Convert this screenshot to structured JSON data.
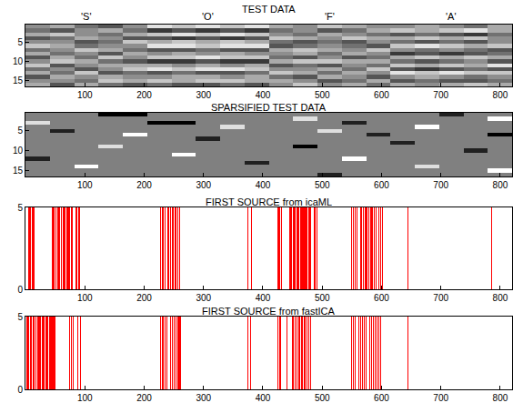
{
  "chart_data": [
    {
      "type": "heatmap",
      "title": "TEST DATA",
      "color": "gray",
      "grid": false,
      "annotations": [
        {
          "text": "'S'",
          "x": 103
        },
        {
          "text": "'O'",
          "x": 308
        },
        {
          "text": "'F'",
          "x": 513
        },
        {
          "text": "'A'",
          "x": 718
        }
      ],
      "x": [
        20.5,
        61.5,
        102.5,
        143.5,
        184.5,
        225.5,
        266.5,
        307.5,
        348.5,
        389.5,
        430.5,
        471.5,
        512.5,
        553.5,
        594.5,
        635.5,
        676.5,
        717.5,
        758.5,
        799.5
      ],
      "y": [
        1,
        2,
        3,
        4,
        5,
        6,
        7,
        8,
        9,
        10,
        11,
        12,
        13,
        14,
        15,
        16
      ],
      "zlim": [
        0,
        9
      ],
      "z": [
        [
          5,
          6,
          4,
          3,
          5,
          8,
          7,
          8,
          7,
          8,
          6,
          5,
          7,
          6,
          5,
          5,
          6,
          5,
          4,
          6
        ],
        [
          4,
          3,
          5,
          6,
          4,
          2,
          3,
          2,
          3,
          2,
          4,
          5,
          3,
          4,
          6,
          7,
          6,
          7,
          8,
          6
        ],
        [
          6,
          7,
          5,
          4,
          6,
          7,
          8,
          7,
          8,
          7,
          5,
          4,
          6,
          5,
          4,
          3,
          4,
          3,
          2,
          4
        ],
        [
          3,
          4,
          6,
          5,
          3,
          3,
          2,
          3,
          2,
          3,
          7,
          6,
          5,
          7,
          6,
          6,
          7,
          6,
          7,
          5
        ],
        [
          5,
          5,
          3,
          4,
          7,
          6,
          7,
          6,
          7,
          6,
          4,
          3,
          4,
          3,
          5,
          4,
          3,
          4,
          3,
          5
        ],
        [
          7,
          6,
          4,
          5,
          5,
          8,
          8,
          7,
          8,
          8,
          3,
          4,
          5,
          4,
          3,
          7,
          8,
          7,
          6,
          7
        ],
        [
          4,
          5,
          7,
          6,
          4,
          3,
          3,
          4,
          3,
          3,
          6,
          7,
          6,
          5,
          7,
          5,
          4,
          5,
          4,
          3
        ],
        [
          6,
          4,
          5,
          3,
          6,
          5,
          6,
          5,
          6,
          5,
          5,
          6,
          4,
          6,
          5,
          2,
          3,
          2,
          3,
          4
        ],
        [
          3,
          6,
          4,
          7,
          5,
          7,
          7,
          8,
          7,
          7,
          4,
          3,
          5,
          3,
          4,
          6,
          7,
          6,
          7,
          6
        ],
        [
          5,
          7,
          6,
          4,
          3,
          2,
          2,
          3,
          2,
          2,
          6,
          7,
          7,
          6,
          6,
          4,
          3,
          4,
          5,
          3
        ],
        [
          7,
          3,
          5,
          6,
          6,
          6,
          5,
          6,
          5,
          6,
          3,
          4,
          3,
          5,
          4,
          7,
          6,
          7,
          6,
          8
        ],
        [
          4,
          5,
          3,
          5,
          7,
          8,
          7,
          8,
          8,
          7,
          5,
          5,
          6,
          4,
          7,
          3,
          2,
          3,
          4,
          3
        ],
        [
          6,
          4,
          7,
          3,
          4,
          3,
          4,
          3,
          3,
          4,
          7,
          6,
          4,
          6,
          5,
          8,
          7,
          8,
          7,
          7
        ],
        [
          3,
          6,
          5,
          6,
          5,
          5,
          6,
          6,
          5,
          6,
          4,
          3,
          6,
          5,
          3,
          5,
          6,
          5,
          4,
          5
        ],
        [
          5,
          5,
          4,
          7,
          6,
          7,
          6,
          7,
          7,
          6,
          6,
          5,
          3,
          4,
          6,
          3,
          4,
          3,
          3,
          4
        ],
        [
          6,
          3,
          6,
          4,
          3,
          4,
          3,
          3,
          4,
          3,
          5,
          7,
          5,
          6,
          4,
          6,
          5,
          6,
          7,
          6
        ]
      ],
      "xlim": [
        0,
        820
      ],
      "xticks": [
        100,
        200,
        300,
        400,
        500,
        600,
        700,
        800
      ],
      "ylim": [
        16.5,
        0.5
      ],
      "yticks": [
        5,
        10,
        15
      ]
    },
    {
      "type": "heatmap",
      "title": "SPARSIFIED TEST DATA",
      "color": "gray",
      "grid": false,
      "x": [
        20.5,
        61.5,
        102.5,
        143.5,
        184.5,
        225.5,
        266.5,
        307.5,
        348.5,
        389.5,
        430.5,
        471.5,
        512.5,
        553.5,
        594.5,
        635.5,
        676.5,
        717.5,
        758.5,
        799.5
      ],
      "y": [
        1,
        2,
        3,
        4,
        5,
        6,
        7,
        8,
        9,
        10,
        11,
        12,
        13,
        14,
        15,
        16
      ],
      "zlim": [
        -4,
        4
      ],
      "z": [
        [
          0,
          0,
          0,
          -4,
          -4,
          0,
          0,
          0,
          0,
          0,
          0,
          0,
          0,
          0,
          0,
          0,
          0,
          -3,
          0,
          0
        ],
        [
          0,
          0,
          0,
          0,
          0,
          0,
          0,
          0,
          0,
          0,
          0,
          3,
          0,
          0,
          0,
          0,
          0,
          0,
          0,
          4
        ],
        [
          3,
          0,
          0,
          0,
          0,
          -4,
          -4,
          0,
          0,
          0,
          0,
          0,
          0,
          -3,
          0,
          0,
          0,
          0,
          0,
          0
        ],
        [
          0,
          0,
          0,
          0,
          0,
          0,
          0,
          0,
          3,
          0,
          0,
          0,
          0,
          0,
          0,
          0,
          4,
          0,
          0,
          0
        ],
        [
          0,
          -3,
          0,
          0,
          0,
          0,
          0,
          0,
          0,
          0,
          0,
          0,
          3,
          0,
          0,
          0,
          0,
          0,
          0,
          0
        ],
        [
          0,
          0,
          0,
          0,
          4,
          0,
          0,
          0,
          0,
          0,
          0,
          0,
          0,
          0,
          -3,
          0,
          0,
          0,
          0,
          -4
        ],
        [
          0,
          0,
          0,
          0,
          0,
          0,
          0,
          -3,
          0,
          0,
          0,
          0,
          0,
          0,
          0,
          0,
          0,
          0,
          0,
          0
        ],
        [
          0,
          0,
          0,
          0,
          0,
          0,
          0,
          0,
          0,
          0,
          0,
          0,
          0,
          0,
          0,
          -3,
          0,
          0,
          0,
          0
        ],
        [
          0,
          0,
          0,
          3,
          0,
          0,
          0,
          0,
          0,
          0,
          0,
          -4,
          0,
          0,
          0,
          0,
          0,
          0,
          0,
          0
        ],
        [
          0,
          0,
          0,
          0,
          0,
          0,
          0,
          0,
          0,
          0,
          0,
          0,
          0,
          0,
          0,
          0,
          0,
          0,
          -3,
          0
        ],
        [
          0,
          0,
          0,
          0,
          0,
          0,
          4,
          0,
          0,
          0,
          0,
          0,
          0,
          0,
          0,
          0,
          0,
          0,
          0,
          0
        ],
        [
          -3,
          0,
          0,
          0,
          0,
          0,
          0,
          0,
          0,
          0,
          0,
          0,
          0,
          4,
          0,
          0,
          0,
          0,
          0,
          0
        ],
        [
          0,
          0,
          0,
          0,
          0,
          0,
          0,
          0,
          0,
          -3,
          0,
          0,
          0,
          0,
          0,
          0,
          0,
          0,
          0,
          0
        ],
        [
          0,
          0,
          4,
          0,
          0,
          0,
          0,
          0,
          0,
          0,
          0,
          0,
          0,
          0,
          0,
          0,
          3,
          0,
          0,
          0
        ],
        [
          0,
          0,
          0,
          0,
          0,
          0,
          0,
          0,
          0,
          0,
          0,
          0,
          0,
          0,
          0,
          0,
          0,
          0,
          0,
          4
        ],
        [
          0,
          0,
          0,
          0,
          0,
          0,
          0,
          0,
          0,
          0,
          0,
          0,
          -3,
          0,
          0,
          0,
          0,
          0,
          0,
          0
        ]
      ],
      "xlim": [
        0,
        820
      ],
      "xticks": [
        100,
        200,
        300,
        400,
        500,
        600,
        700,
        800
      ],
      "ylim": [
        16.5,
        0.5
      ],
      "yticks": [
        5,
        10,
        15
      ]
    },
    {
      "type": "bar",
      "title": "FIRST SOURCE from icaML",
      "color": "#ff0000",
      "grid": false,
      "x": [
        5,
        7,
        9,
        11,
        13,
        15,
        45,
        47,
        49,
        52,
        54,
        56,
        58,
        60,
        63,
        65,
        67,
        69,
        71,
        73,
        75,
        77,
        79,
        85,
        87,
        89,
        91,
        228,
        230,
        232,
        235,
        240,
        242,
        244,
        247,
        249,
        252,
        254,
        257,
        260,
        375,
        381,
        425,
        427,
        429,
        431,
        445,
        447,
        449,
        451,
        453,
        455,
        457,
        459,
        461,
        463,
        465,
        467,
        469,
        471,
        473,
        475,
        477,
        479,
        481,
        486,
        488,
        491,
        550,
        552,
        555,
        558,
        565,
        567,
        569,
        572,
        574,
        576,
        578,
        581,
        583,
        585,
        588,
        591,
        595,
        598,
        601,
        645,
        785
      ],
      "values": [
        5,
        5,
        5,
        5,
        5,
        5,
        5,
        5,
        5,
        5,
        5,
        5,
        5,
        5,
        5,
        5,
        5,
        5,
        5,
        5,
        5,
        5,
        5,
        5,
        5,
        5,
        5,
        5,
        5,
        5,
        5,
        5,
        5,
        5,
        5,
        5,
        5,
        5,
        5,
        5,
        5,
        5,
        5,
        5,
        5,
        5,
        5,
        5,
        5,
        5,
        5,
        5,
        5,
        5,
        5,
        5,
        5,
        5,
        5,
        5,
        5,
        5,
        5,
        5,
        5,
        5,
        5,
        5,
        5,
        5,
        5,
        5,
        5,
        5,
        5,
        5,
        5,
        5,
        5,
        5,
        5,
        5,
        5,
        5,
        5,
        5,
        5,
        5,
        5
      ],
      "xlim": [
        0,
        820
      ],
      "xticks": [
        100,
        200,
        300,
        400,
        500,
        600,
        700,
        800
      ],
      "ylim": [
        0,
        5
      ],
      "yticks": [
        0,
        5
      ]
    },
    {
      "type": "bar",
      "title": "FIRST SOURCE from fastICA",
      "color": "#ff0000",
      "grid": false,
      "x": [
        2,
        4,
        6,
        8,
        10,
        13,
        15,
        18,
        20,
        22,
        24,
        26,
        28,
        30,
        32,
        34,
        36,
        38,
        40,
        42,
        44,
        46,
        48,
        50,
        75,
        77,
        80,
        88,
        92,
        228,
        230,
        232,
        235,
        238,
        245,
        248,
        250,
        253,
        256,
        259,
        262,
        375,
        380,
        425,
        428,
        430,
        440,
        450,
        452,
        455,
        458,
        460,
        462,
        465,
        467,
        470,
        472,
        475,
        478,
        481,
        550,
        553,
        556,
        562,
        565,
        568,
        571,
        574,
        580,
        583,
        586,
        589,
        592,
        595,
        598,
        645
      ],
      "values": [
        5,
        5,
        5,
        5,
        5,
        5,
        5,
        5,
        5,
        5,
        5,
        5,
        5,
        5,
        5,
        5,
        5,
        5,
        5,
        5,
        5,
        5,
        5,
        5,
        5,
        5,
        5,
        5,
        5,
        5,
        5,
        5,
        5,
        5,
        5,
        5,
        5,
        5,
        5,
        5,
        5,
        5,
        5,
        5,
        5,
        5,
        5,
        5,
        5,
        5,
        5,
        5,
        5,
        5,
        5,
        5,
        5,
        5,
        5,
        5,
        5,
        5,
        5,
        5,
        5,
        5,
        5,
        5,
        5,
        5,
        5,
        5,
        5,
        5,
        5,
        5
      ],
      "xlim": [
        0,
        820
      ],
      "xticks": [
        100,
        200,
        300,
        400,
        500,
        600,
        700,
        800
      ],
      "ylim": [
        0,
        5
      ],
      "yticks": [
        0,
        5
      ]
    }
  ]
}
